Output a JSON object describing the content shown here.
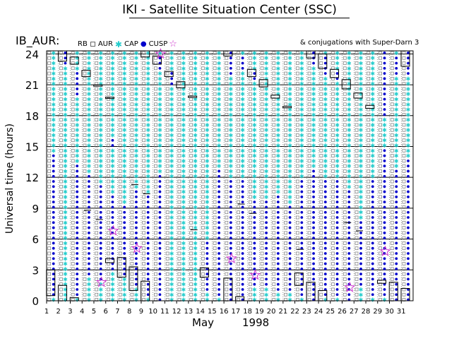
{
  "header": {
    "title": "IKI - Satellite Situation Center (SSC)"
  },
  "satellite_label": "IB_AUR:",
  "legend": {
    "items": [
      {
        "label": "RB",
        "symbol": "open-square-icon",
        "color": "#000000"
      },
      {
        "label": "AUR",
        "symbol": "small-square-icon",
        "color": "#777777"
      },
      {
        "label": "CAP",
        "symbol": "cyan-asterisk-icon",
        "color": "#22cccc"
      },
      {
        "label": "CUSP",
        "symbol": "blue-dot-icon",
        "color": "#0000cc"
      }
    ],
    "superdarn_symbol": "star-icon",
    "superdarn_color": "#cc33cc"
  },
  "conjugations_note": "& conjugations with Super-Darn 3",
  "chart_data": {
    "type": "scatter",
    "ylabel": "Universal time (hours)",
    "xlabel_month": "May",
    "xlabel_year": "1998",
    "x_ticks": [
      1,
      2,
      3,
      4,
      5,
      6,
      7,
      8,
      9,
      10,
      11,
      12,
      13,
      14,
      15,
      16,
      17,
      18,
      19,
      20,
      21,
      22,
      23,
      24,
      25,
      26,
      27,
      28,
      29,
      30,
      31
    ],
    "y_ticks": [
      0,
      3,
      6,
      9,
      12,
      15,
      18,
      21,
      24
    ],
    "xlim": [
      1,
      32
    ],
    "ylim": [
      0,
      24.3
    ],
    "grid": true,
    "colors": {
      "rb": "#000000",
      "aur": "#777777",
      "cap": "#22cccc",
      "cusp": "#0000cc",
      "superdarn": "#cc33cc"
    },
    "days": [
      {
        "day": 2,
        "rb": [
          [
            0.5,
            3.0
          ]
        ],
        "cusp": [
          [
            0.5,
            14.5
          ]
        ],
        "rb_mark": null
      },
      {
        "day": 3,
        "rb": [
          [
            0,
            1.5
          ],
          [
            23.3,
            24.3
          ]
        ],
        "cusp": [
          [
            23.0,
            24.3
          ]
        ],
        "rb_mark": null
      },
      {
        "day": 4,
        "rb": [
          [
            0,
            0.3
          ],
          [
            23.0,
            23.7
          ]
        ],
        "cusp": [
          [
            0.3,
            13.5
          ],
          [
            20.0,
            22.5
          ]
        ],
        "rb_mark": null
      },
      {
        "day": 5,
        "rb": [
          [
            21.8,
            22.4
          ]
        ],
        "cusp": [
          [
            2.5,
            12.5
          ]
        ],
        "rb_mark": 8.8
      },
      {
        "day": 6,
        "rb": [
          [
            20.9,
            21.0
          ]
        ],
        "cusp": [
          [
            2.0,
            11.5
          ]
        ],
        "rb_mark": 7.9
      },
      {
        "day": 7,
        "rb": [
          [
            3.7,
            4.1
          ],
          [
            19.7,
            19.8
          ]
        ],
        "cusp": [
          [
            3.0,
            10.5
          ],
          [
            15.0,
            16.0
          ]
        ],
        "rb_mark": null
      },
      {
        "day": 8,
        "rb": [
          [
            2.3,
            4.2
          ]
        ],
        "cusp": [
          [
            2.3,
            9.5
          ]
        ],
        "rb_mark": null
      },
      {
        "day": 9,
        "rb": [
          [
            1.0,
            3.3
          ]
        ],
        "cusp": [
          [
            1.5,
            11.0
          ]
        ],
        "rb_mark": 11.3
      },
      {
        "day": 10,
        "rb": [
          [
            0,
            1.9
          ],
          [
            23.7,
            24.3
          ]
        ],
        "cusp": [
          [
            0.3,
            10.5
          ]
        ],
        "rb_mark": 10.4
      },
      {
        "day": 11,
        "rb": [
          [
            23.0,
            23.8
          ]
        ],
        "cusp": [
          [
            0,
            12.5
          ],
          [
            22.5,
            24.0
          ]
        ],
        "rb_mark": null
      },
      {
        "day": 12,
        "rb": [
          [
            21.8,
            22.3
          ]
        ],
        "cusp": [
          [
            21.0,
            22.3
          ]
        ],
        "rb_mark": null
      },
      {
        "day": 13,
        "rb": [
          [
            20.7,
            21.3
          ]
        ],
        "cusp": [],
        "rb_mark": null
      },
      {
        "day": 14,
        "rb": [
          [
            19.8,
            19.9
          ]
        ],
        "cusp": [],
        "rb_mark": 6.9
      },
      {
        "day": 15,
        "rb": [
          [
            2.3,
            3.2
          ]
        ],
        "cusp": [
          [
            1.0,
            6.0
          ]
        ],
        "rb_mark": null
      },
      {
        "day": 16,
        "rb": [],
        "cusp": [
          [
            0.5,
            13.0
          ]
        ],
        "rb_mark": null
      },
      {
        "day": 17,
        "rb": [
          [
            0,
            2.2
          ],
          [
            23.8,
            24.3
          ]
        ],
        "cusp": [
          [
            0,
            12.0
          ],
          [
            22.0,
            24.3
          ]
        ],
        "rb_mark": null
      },
      {
        "day": 18,
        "rb": [
          [
            0,
            0.4
          ]
        ],
        "cusp": [
          [
            0,
            12.0
          ],
          [
            22.5,
            24.0
          ]
        ],
        "rb_mark": 9.4
      },
      {
        "day": 19,
        "rb": [
          [
            21.8,
            22.5
          ]
        ],
        "cusp": [
          [
            1.5,
            10.0
          ],
          [
            21.5,
            22.5
          ]
        ],
        "rb_mark": 8.5
      },
      {
        "day": 20,
        "rb": [
          [
            20.8,
            21.5
          ]
        ],
        "cusp": [
          [
            1.5,
            10.0
          ]
        ],
        "rb_mark": null
      },
      {
        "day": 21,
        "rb": [
          [
            19.7,
            20.0
          ]
        ],
        "cusp": [
          [
            1.0,
            10.5
          ]
        ],
        "rb_mark": null
      },
      {
        "day": 22,
        "rb": [
          [
            18.8,
            18.9
          ]
        ],
        "cusp": [
          [
            1.0,
            9.5
          ]
        ],
        "rb_mark": null
      },
      {
        "day": 23,
        "rb": [
          [
            1.5,
            2.7
          ]
        ],
        "cusp": [
          [
            0.5,
            12.0
          ]
        ],
        "rb_mark": 5.0
      },
      {
        "day": 24,
        "rb": [
          [
            0,
            1.8
          ],
          [
            23.6,
            24.3
          ]
        ],
        "cusp": [
          [
            0,
            13.0
          ],
          [
            23.0,
            24.3
          ]
        ],
        "rb_mark": null
      },
      {
        "day": 25,
        "rb": [
          [
            0,
            1.0
          ],
          [
            22.6,
            24.0
          ]
        ],
        "cusp": [
          [
            0.2,
            12.0
          ],
          [
            22.0,
            23.8
          ]
        ],
        "rb_mark": null
      },
      {
        "day": 26,
        "rb": [
          [
            21.7,
            22.5
          ]
        ],
        "cusp": [
          [
            0.2,
            12.0
          ],
          [
            21.5,
            22.5
          ]
        ],
        "rb_mark": null
      },
      {
        "day": 27,
        "rb": [
          [
            20.6,
            21.5
          ]
        ],
        "cusp": [
          [
            0,
            11.0
          ]
        ],
        "rb_mark": 7.6
      },
      {
        "day": 28,
        "rb": [
          [
            19.7,
            20.2
          ]
        ],
        "cusp": [
          [
            1.5,
            8.0
          ]
        ],
        "rb_mark": 6.8
      },
      {
        "day": 29,
        "rb": [
          [
            18.7,
            19.0
          ]
        ],
        "cusp": [
          [
            0.5,
            12.0
          ]
        ],
        "rb_mark": null
      },
      {
        "day": 30,
        "rb": [
          [
            1.7,
            2.0
          ]
        ],
        "cusp": [
          [
            0.5,
            15.0
          ],
          [
            18.0,
            24.3
          ]
        ],
        "rb_mark": null
      },
      {
        "day": 31,
        "rb": [
          [
            0,
            1.8
          ]
        ],
        "cusp": [
          [
            0,
            13.0
          ],
          [
            22.0,
            24.0
          ]
        ],
        "rb_mark": null
      },
      {
        "day": 32,
        "rb": [
          [
            0,
            1.2
          ],
          [
            22.8,
            24.3
          ]
        ],
        "cusp": [
          [
            0,
            14.0
          ],
          [
            22.0,
            24.3
          ]
        ],
        "rb_mark": null
      }
    ],
    "superdarn_stars": [
      {
        "day": 6,
        "hour": 1.8
      },
      {
        "day": 7,
        "hour": 6.8
      },
      {
        "day": 9,
        "hour": 5.1
      },
      {
        "day": 11,
        "hour": 24.0
      },
      {
        "day": 17,
        "hour": 4.1
      },
      {
        "day": 19,
        "hour": 2.5
      },
      {
        "day": 27,
        "hour": 1.3
      },
      {
        "day": 30,
        "hour": 4.8
      }
    ]
  }
}
